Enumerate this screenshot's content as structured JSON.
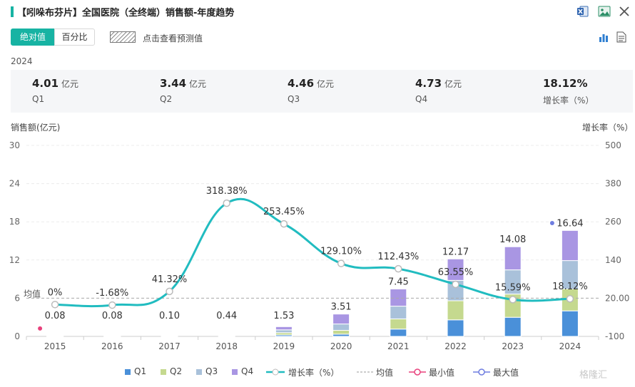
{
  "header": {
    "title": "【吲哚布芬片】全国医院（全终端）销售额-年度趋势"
  },
  "controls": {
    "tab_absolute": "绝对值",
    "tab_percent": "百分比",
    "prediction_label": "点击查看预测值"
  },
  "summary": {
    "year": "2024",
    "items": [
      {
        "value": "4.01",
        "unit": "亿元",
        "label": "Q1"
      },
      {
        "value": "3.44",
        "unit": "亿元",
        "label": "Q2"
      },
      {
        "value": "4.46",
        "unit": "亿元",
        "label": "Q3"
      },
      {
        "value": "4.73",
        "unit": "亿元",
        "label": "Q4"
      },
      {
        "value": "18.12%",
        "unit": "",
        "label": "增长率（%）"
      }
    ]
  },
  "colors": {
    "accent": "#17b3a3",
    "q1": "#4a90d9",
    "q2": "#c5d98f",
    "q3": "#a9c1da",
    "q4": "#a996e3",
    "line": "#21bcc0",
    "min": "#e8417c",
    "max": "#6f7de0"
  },
  "chart_data": {
    "type": "bar",
    "ylabel_left": "销售额(亿元)",
    "ylabel_right": "增长率（%）",
    "left_ticks": [
      "0",
      "6",
      "12",
      "18",
      "24",
      "30"
    ],
    "right_ticks": [
      "-100",
      "20.00",
      "140",
      "260",
      "380",
      "500"
    ],
    "ylim_left": [
      0,
      30
    ],
    "ylim_right": [
      -100,
      500
    ],
    "categories": [
      "2015",
      "2016",
      "2017",
      "2018",
      "2019",
      "2020",
      "2021",
      "2022",
      "2023",
      "2024"
    ],
    "series": [
      {
        "name": "Q1",
        "values": [
          0.02,
          0.02,
          0.025,
          0.11,
          0.23,
          0.35,
          1.15,
          2.6,
          3.0,
          4.01
        ]
      },
      {
        "name": "Q2",
        "values": [
          0.02,
          0.02,
          0.025,
          0.11,
          0.35,
          0.6,
          1.6,
          3.0,
          3.65,
          3.44
        ]
      },
      {
        "name": "Q3",
        "values": [
          0.02,
          0.02,
          0.025,
          0.11,
          0.45,
          1.0,
          2.0,
          3.2,
          3.8,
          4.46
        ]
      },
      {
        "name": "Q4",
        "values": [
          0.02,
          0.02,
          0.025,
          0.11,
          0.5,
          1.56,
          2.7,
          3.37,
          3.63,
          4.73
        ]
      }
    ],
    "totals": [
      "0.08",
      "0.08",
      "0.10",
      "0.44",
      "1.53",
      "3.51",
      "7.45",
      "12.17",
      "14.08",
      "16.64"
    ],
    "growth": {
      "name": "增长率（%）",
      "values": [
        0,
        -1.68,
        41.32,
        318.38,
        253.45,
        129.1,
        112.43,
        63.55,
        15.59,
        18.12
      ],
      "labels": [
        "0%",
        "-1.68%",
        "41.32%",
        "318.38%",
        "253.45%",
        "129.10%",
        "112.43%",
        "63.55%",
        "15.59%",
        "18.12%"
      ]
    },
    "mean_label": "均值",
    "mean_value": 20,
    "min_index": 0,
    "max_index": 9,
    "legend": [
      "Q1",
      "Q2",
      "Q3",
      "Q4",
      "增长率（%）",
      "均值",
      "最小值",
      "最大值"
    ],
    "legend_position": "bottom",
    "grid": true
  },
  "watermark": "格隆汇"
}
